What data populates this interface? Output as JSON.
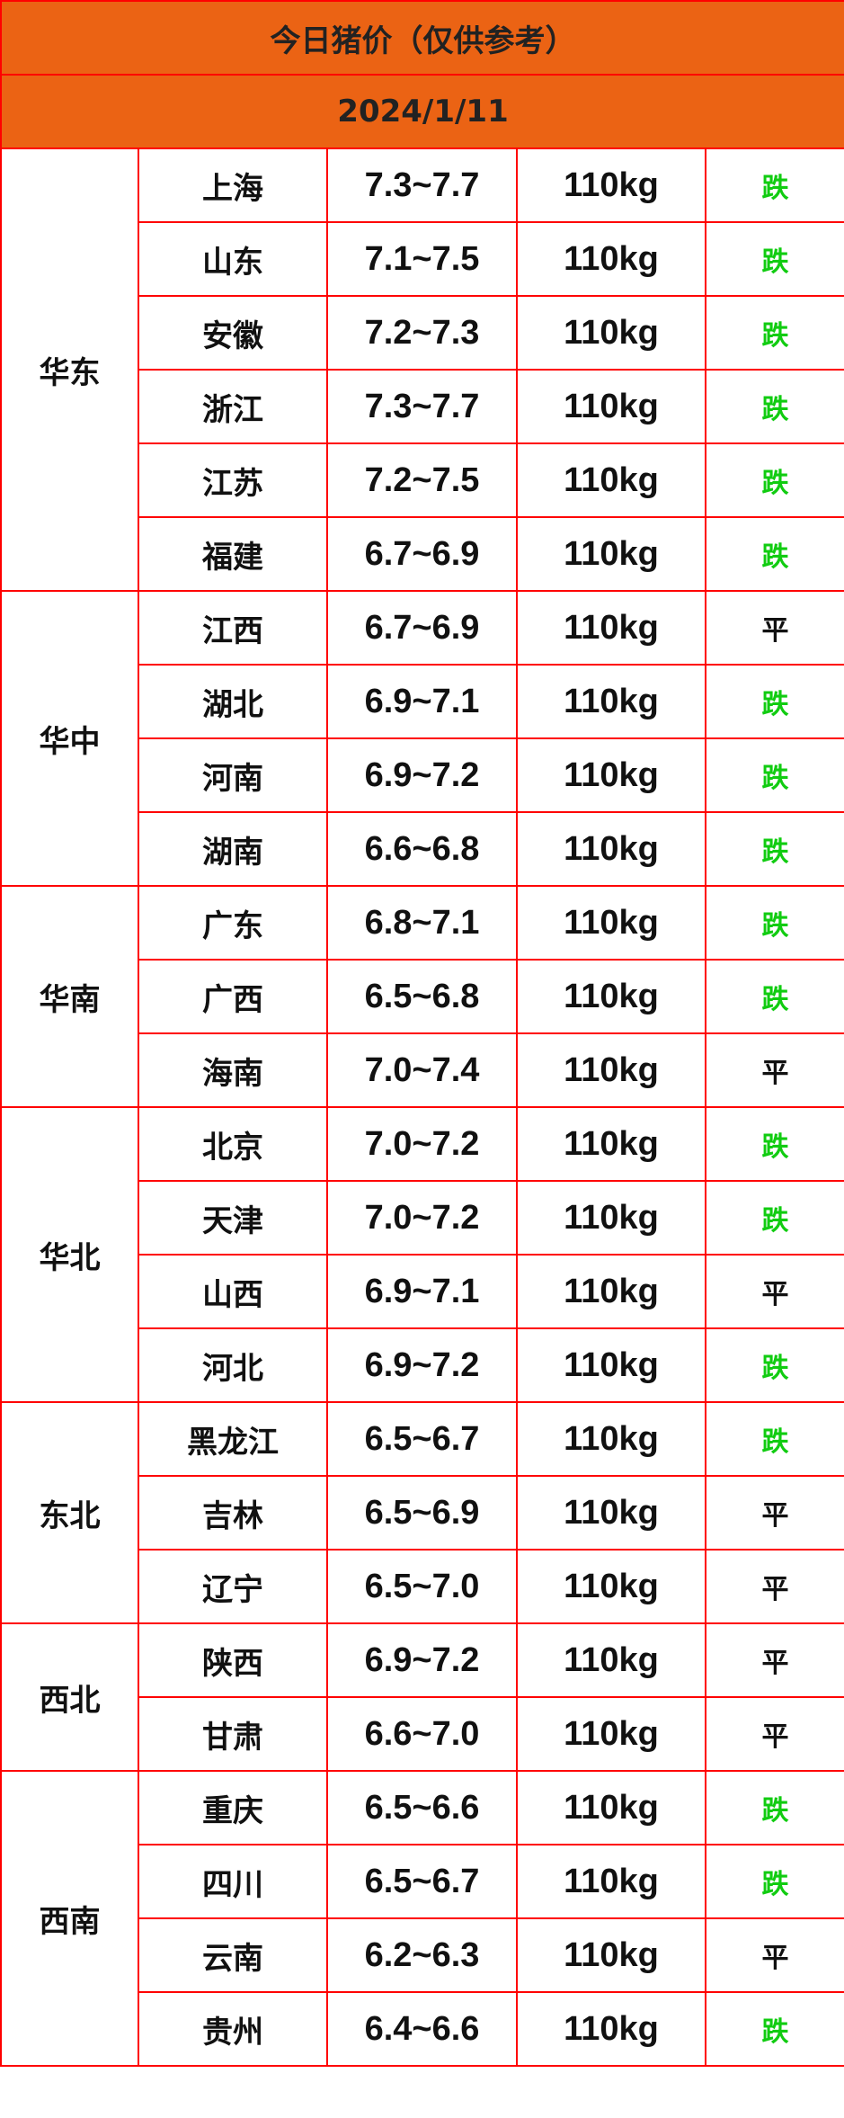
{
  "title": "今日猪价（仅供参考）",
  "date": "2024/1/11",
  "colors": {
    "header_bg": "#eb6314",
    "border": "#ff0000",
    "down": "#11cc11",
    "flat": "#111111"
  },
  "regions": [
    {
      "name": "华东",
      "rows": [
        [
          "上海",
          "7.3~7.7",
          "110kg",
          "跌"
        ],
        [
          "山东",
          "7.1~7.5",
          "110kg",
          "跌"
        ],
        [
          "安徽",
          "7.2~7.3",
          "110kg",
          "跌"
        ],
        [
          "浙江",
          "7.3~7.7",
          "110kg",
          "跌"
        ],
        [
          "江苏",
          "7.2~7.5",
          "110kg",
          "跌"
        ],
        [
          "福建",
          "6.7~6.9",
          "110kg",
          "跌"
        ]
      ]
    },
    {
      "name": "华中",
      "rows": [
        [
          "江西",
          "6.7~6.9",
          "110kg",
          "平"
        ],
        [
          "湖北",
          "6.9~7.1",
          "110kg",
          "跌"
        ],
        [
          "河南",
          "6.9~7.2",
          "110kg",
          "跌"
        ],
        [
          "湖南",
          "6.6~6.8",
          "110kg",
          "跌"
        ]
      ]
    },
    {
      "name": "华南",
      "rows": [
        [
          "广东",
          "6.8~7.1",
          "110kg",
          "跌"
        ],
        [
          "广西",
          "6.5~6.8",
          "110kg",
          "跌"
        ],
        [
          "海南",
          "7.0~7.4",
          "110kg",
          "平"
        ]
      ]
    },
    {
      "name": "华北",
      "rows": [
        [
          "北京",
          "7.0~7.2",
          "110kg",
          "跌"
        ],
        [
          "天津",
          "7.0~7.2",
          "110kg",
          "跌"
        ],
        [
          "山西",
          "6.9~7.1",
          "110kg",
          "平"
        ],
        [
          "河北",
          "6.9~7.2",
          "110kg",
          "跌"
        ]
      ]
    },
    {
      "name": "东北",
      "rows": [
        [
          "黑龙江",
          "6.5~6.7",
          "110kg",
          "跌"
        ],
        [
          "吉林",
          "6.5~6.9",
          "110kg",
          "平"
        ],
        [
          "辽宁",
          "6.5~7.0",
          "110kg",
          "平"
        ]
      ]
    },
    {
      "name": "西北",
      "rows": [
        [
          "陕西",
          "6.9~7.2",
          "110kg",
          "平"
        ],
        [
          "甘肃",
          "6.6~7.0",
          "110kg",
          "平"
        ]
      ]
    },
    {
      "name": "西南",
      "rows": [
        [
          "重庆",
          "6.5~6.6",
          "110kg",
          "跌"
        ],
        [
          "四川",
          "6.5~6.7",
          "110kg",
          "跌"
        ],
        [
          "云南",
          "6.2~6.3",
          "110kg",
          "平"
        ],
        [
          "贵州",
          "6.4~6.6",
          "110kg",
          "跌"
        ]
      ]
    }
  ]
}
